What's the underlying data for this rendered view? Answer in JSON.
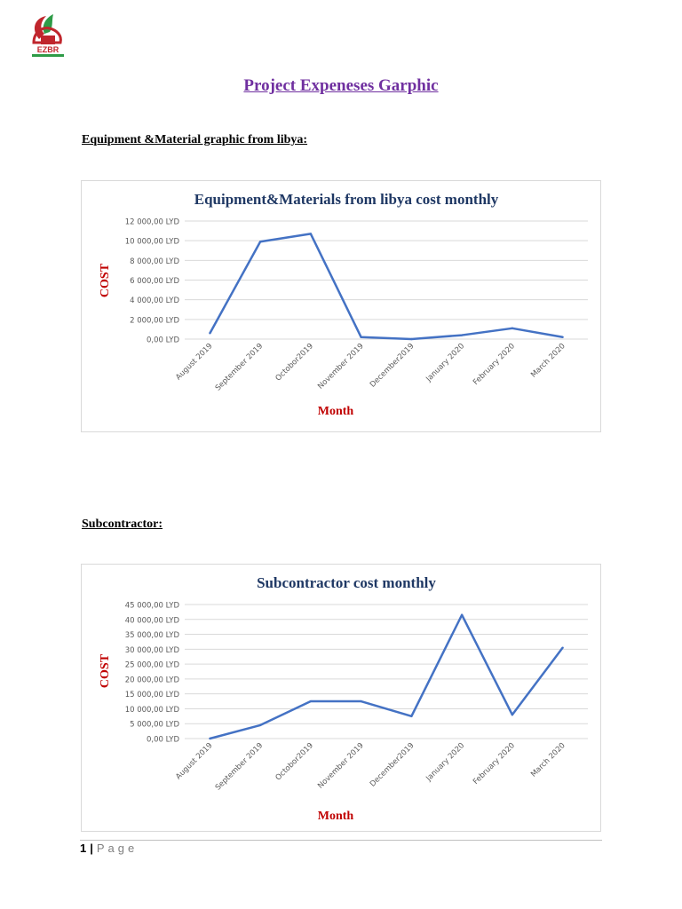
{
  "logo": {
    "text": "EZBR"
  },
  "document": {
    "title": "Project Expeneses Garphic"
  },
  "sections": [
    {
      "heading": "Equipment &Material graphic from libya:"
    },
    {
      "heading": "Subcontractor:"
    }
  ],
  "footer": {
    "page_number": "1",
    "separator": "|",
    "page_label": "Page"
  },
  "colors": {
    "line": "#4472c4",
    "axis_title": "#c00000",
    "chart_title": "#1f3864",
    "grid": "#d9d9d9"
  },
  "chart_data": [
    {
      "type": "line",
      "title": "Equipment&Materials from libya cost monthly",
      "xlabel": "Month",
      "ylabel": "COST",
      "categories": [
        "August 2019",
        "September 2019",
        "Octobor2019",
        "November 2019",
        "December2019",
        "January 2020",
        "February 2020",
        "March 2020"
      ],
      "y_ticks": [
        0,
        2000,
        4000,
        6000,
        8000,
        10000,
        12000
      ],
      "y_tick_labels": [
        "0,00 LYD",
        "2 000,00 LYD",
        "4 000,00 LYD",
        "6 000,00 LYD",
        "8 000,00 LYD",
        "10 000,00 LYD",
        "12 000,00 LYD"
      ],
      "ylim": [
        0,
        12000
      ],
      "grid": true,
      "series": [
        {
          "values": [
            600,
            9900,
            10700,
            200,
            0,
            400,
            1100,
            200
          ]
        }
      ]
    },
    {
      "type": "line",
      "title": "Subcontractor cost monthly",
      "xlabel": "Month",
      "ylabel": "COST",
      "categories": [
        "August 2019",
        "September 2019",
        "Octobor2019",
        "November 2019",
        "December2019",
        "January 2020",
        "February 2020",
        "March 2020"
      ],
      "y_ticks": [
        0,
        5000,
        10000,
        15000,
        20000,
        25000,
        30000,
        35000,
        40000,
        45000
      ],
      "y_tick_labels": [
        "0,00 LYD",
        "5 000,00 LYD",
        "10 000,00 LYD",
        "15 000,00 LYD",
        "20 000,00 LYD",
        "25 000,00 LYD",
        "30 000,00 LYD",
        "35 000,00 LYD",
        "40 000,00 LYD",
        "45 000,00 LYD"
      ],
      "ylim": [
        0,
        45000
      ],
      "grid": true,
      "series": [
        {
          "values": [
            0,
            4500,
            12500,
            12500,
            7500,
            41500,
            8000,
            30500
          ]
        }
      ]
    }
  ]
}
